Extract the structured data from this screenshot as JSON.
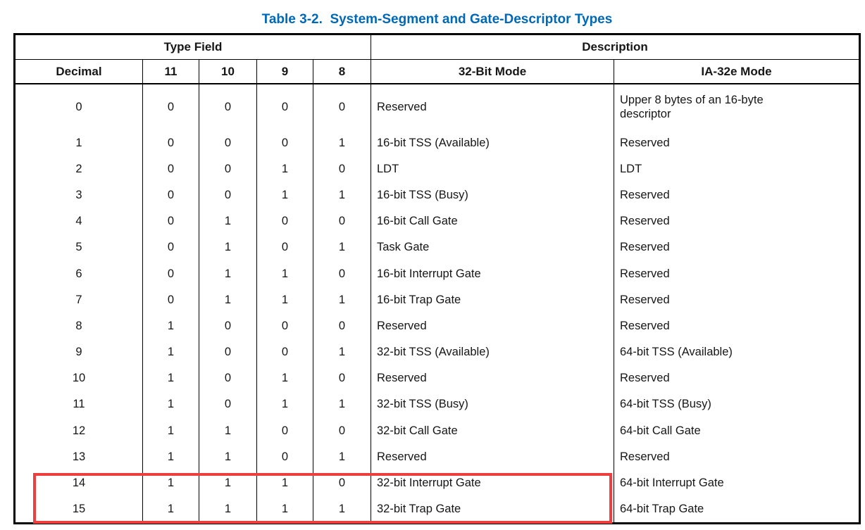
{
  "caption": "Table 3-2.  System-Segment and Gate-Descriptor Types",
  "colors": {
    "caption": "#0068b5",
    "highlight_box": "#ef3e3e",
    "border": "#000000"
  },
  "table": {
    "group_headers": {
      "type_field": "Type Field",
      "description": "Description"
    },
    "column_headers": {
      "decimal": "Decimal",
      "bit11": "11",
      "bit10": "10",
      "bit9": "9",
      "bit8": "8",
      "mode32": "32-Bit Mode",
      "ia32e": "IA-32e Mode"
    },
    "rows": [
      {
        "decimal": "0",
        "bit11": "0",
        "bit10": "0",
        "bit9": "0",
        "bit8": "0",
        "mode32": "Reserved",
        "ia32e": "Upper 8 bytes of an 16-byte descriptor"
      },
      {
        "decimal": "1",
        "bit11": "0",
        "bit10": "0",
        "bit9": "0",
        "bit8": "1",
        "mode32": "16-bit TSS (Available)",
        "ia32e": "Reserved"
      },
      {
        "decimal": "2",
        "bit11": "0",
        "bit10": "0",
        "bit9": "1",
        "bit8": "0",
        "mode32": "LDT",
        "ia32e": "LDT"
      },
      {
        "decimal": "3",
        "bit11": "0",
        "bit10": "0",
        "bit9": "1",
        "bit8": "1",
        "mode32": "16-bit TSS (Busy)",
        "ia32e": "Reserved"
      },
      {
        "decimal": "4",
        "bit11": "0",
        "bit10": "1",
        "bit9": "0",
        "bit8": "0",
        "mode32": "16-bit Call Gate",
        "ia32e": "Reserved"
      },
      {
        "decimal": "5",
        "bit11": "0",
        "bit10": "1",
        "bit9": "0",
        "bit8": "1",
        "mode32": "Task Gate",
        "ia32e": "Reserved"
      },
      {
        "decimal": "6",
        "bit11": "0",
        "bit10": "1",
        "bit9": "1",
        "bit8": "0",
        "mode32": "16-bit Interrupt Gate",
        "ia32e": "Reserved"
      },
      {
        "decimal": "7",
        "bit11": "0",
        "bit10": "1",
        "bit9": "1",
        "bit8": "1",
        "mode32": "16-bit Trap Gate",
        "ia32e": "Reserved"
      },
      {
        "decimal": "8",
        "bit11": "1",
        "bit10": "0",
        "bit9": "0",
        "bit8": "0",
        "mode32": "Reserved",
        "ia32e": "Reserved"
      },
      {
        "decimal": "9",
        "bit11": "1",
        "bit10": "0",
        "bit9": "0",
        "bit8": "1",
        "mode32": "32-bit TSS (Available)",
        "ia32e": "64-bit TSS (Available)"
      },
      {
        "decimal": "10",
        "bit11": "1",
        "bit10": "0",
        "bit9": "1",
        "bit8": "0",
        "mode32": "Reserved",
        "ia32e": "Reserved"
      },
      {
        "decimal": "11",
        "bit11": "1",
        "bit10": "0",
        "bit9": "1",
        "bit8": "1",
        "mode32": "32-bit TSS (Busy)",
        "ia32e": "64-bit TSS (Busy)"
      },
      {
        "decimal": "12",
        "bit11": "1",
        "bit10": "1",
        "bit9": "0",
        "bit8": "0",
        "mode32": "32-bit Call Gate",
        "ia32e": "64-bit Call Gate"
      },
      {
        "decimal": "13",
        "bit11": "1",
        "bit10": "1",
        "bit9": "0",
        "bit8": "1",
        "mode32": "Reserved",
        "ia32e": "Reserved"
      },
      {
        "decimal": "14",
        "bit11": "1",
        "bit10": "1",
        "bit9": "1",
        "bit8": "0",
        "mode32": "32-bit Interrupt Gate",
        "ia32e": "64-bit Interrupt Gate"
      },
      {
        "decimal": "15",
        "bit11": "1",
        "bit10": "1",
        "bit9": "1",
        "bit8": "1",
        "mode32": "32-bit Trap Gate",
        "ia32e": "64-bit Trap Gate"
      }
    ],
    "highlighted_row_decimals": [
      "14",
      "15"
    ]
  }
}
